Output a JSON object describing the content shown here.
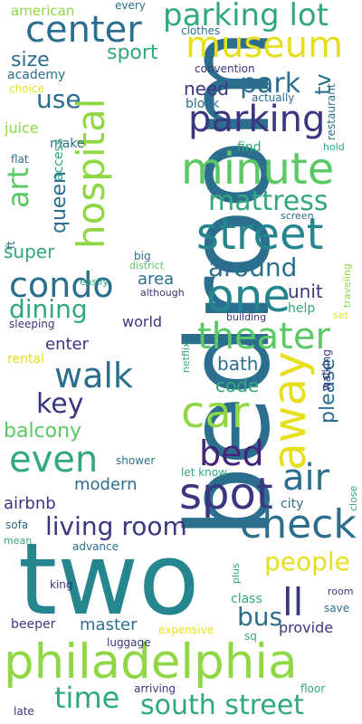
{
  "palette": {
    "navy": "#3b3680",
    "teal": "#25868f",
    "blue": "#2c6e8e",
    "green": "#5ac864",
    "lime": "#8fd744",
    "yellow": "#e6df1f",
    "purple": "#46237a",
    "seagreen": "#31a87d"
  },
  "words": [
    {
      "text": "bedroom"
    },
    {
      "text": "two"
    },
    {
      "text": "philadelphia"
    },
    {
      "text": "minute"
    },
    {
      "text": "museum"
    },
    {
      "text": "street"
    },
    {
      "text": "center"
    },
    {
      "text": "parking"
    },
    {
      "text": "parking lot"
    },
    {
      "text": "hospital"
    },
    {
      "text": "one"
    },
    {
      "text": "away"
    },
    {
      "text": "car"
    },
    {
      "text": "spot"
    },
    {
      "text": "check"
    },
    {
      "text": "theater"
    },
    {
      "text": "condo"
    },
    {
      "text": "walk"
    },
    {
      "text": "even"
    },
    {
      "text": "bed"
    },
    {
      "text": "time"
    },
    {
      "text": "south street"
    },
    {
      "text": "ll"
    },
    {
      "text": "art"
    },
    {
      "text": "mattress"
    },
    {
      "text": "air"
    },
    {
      "text": "living room"
    },
    {
      "text": "people"
    },
    {
      "text": "park"
    },
    {
      "text": "dining"
    },
    {
      "text": "around"
    },
    {
      "text": "key"
    },
    {
      "text": "queen"
    },
    {
      "text": "bus"
    },
    {
      "text": "use"
    },
    {
      "text": "please"
    },
    {
      "text": "sport"
    },
    {
      "text": "size"
    },
    {
      "text": "tv"
    },
    {
      "text": "balcony"
    },
    {
      "text": "american"
    },
    {
      "text": "need"
    },
    {
      "text": "super"
    },
    {
      "text": "enter"
    },
    {
      "text": "area"
    },
    {
      "text": "unit"
    },
    {
      "text": "bath"
    },
    {
      "text": "code"
    },
    {
      "text": "airbnb"
    },
    {
      "text": "modern"
    },
    {
      "text": "master"
    },
    {
      "text": "world"
    },
    {
      "text": "academy"
    },
    {
      "text": "juice"
    },
    {
      "text": "make"
    },
    {
      "text": "block"
    },
    {
      "text": "find"
    },
    {
      "text": "access"
    },
    {
      "text": "restaurant"
    },
    {
      "text": "clothes"
    },
    {
      "text": "every"
    },
    {
      "text": "convention"
    },
    {
      "text": "actually"
    },
    {
      "text": "choice"
    },
    {
      "text": "hold"
    },
    {
      "text": "flat"
    },
    {
      "text": "ft"
    },
    {
      "text": "big"
    },
    {
      "text": "screen"
    },
    {
      "text": "traveling"
    },
    {
      "text": "easily"
    },
    {
      "text": "district"
    },
    {
      "text": "although"
    },
    {
      "text": "help"
    },
    {
      "text": "sleeping"
    },
    {
      "text": "building"
    },
    {
      "text": "set"
    },
    {
      "text": "netflix"
    },
    {
      "text": "rental"
    },
    {
      "text": "walking"
    },
    {
      "text": "let know"
    },
    {
      "text": "shower"
    },
    {
      "text": "city"
    },
    {
      "text": "close"
    },
    {
      "text": "sofa"
    },
    {
      "text": "mean"
    },
    {
      "text": "advance"
    },
    {
      "text": "plus"
    },
    {
      "text": "class"
    },
    {
      "text": "room"
    },
    {
      "text": "save"
    },
    {
      "text": "king"
    },
    {
      "text": "beeper"
    },
    {
      "text": "provide"
    },
    {
      "text": "expensive"
    },
    {
      "text": "luggage"
    },
    {
      "text": "sq"
    },
    {
      "text": "arriving"
    },
    {
      "text": "floor"
    },
    {
      "text": "late"
    }
  ]
}
